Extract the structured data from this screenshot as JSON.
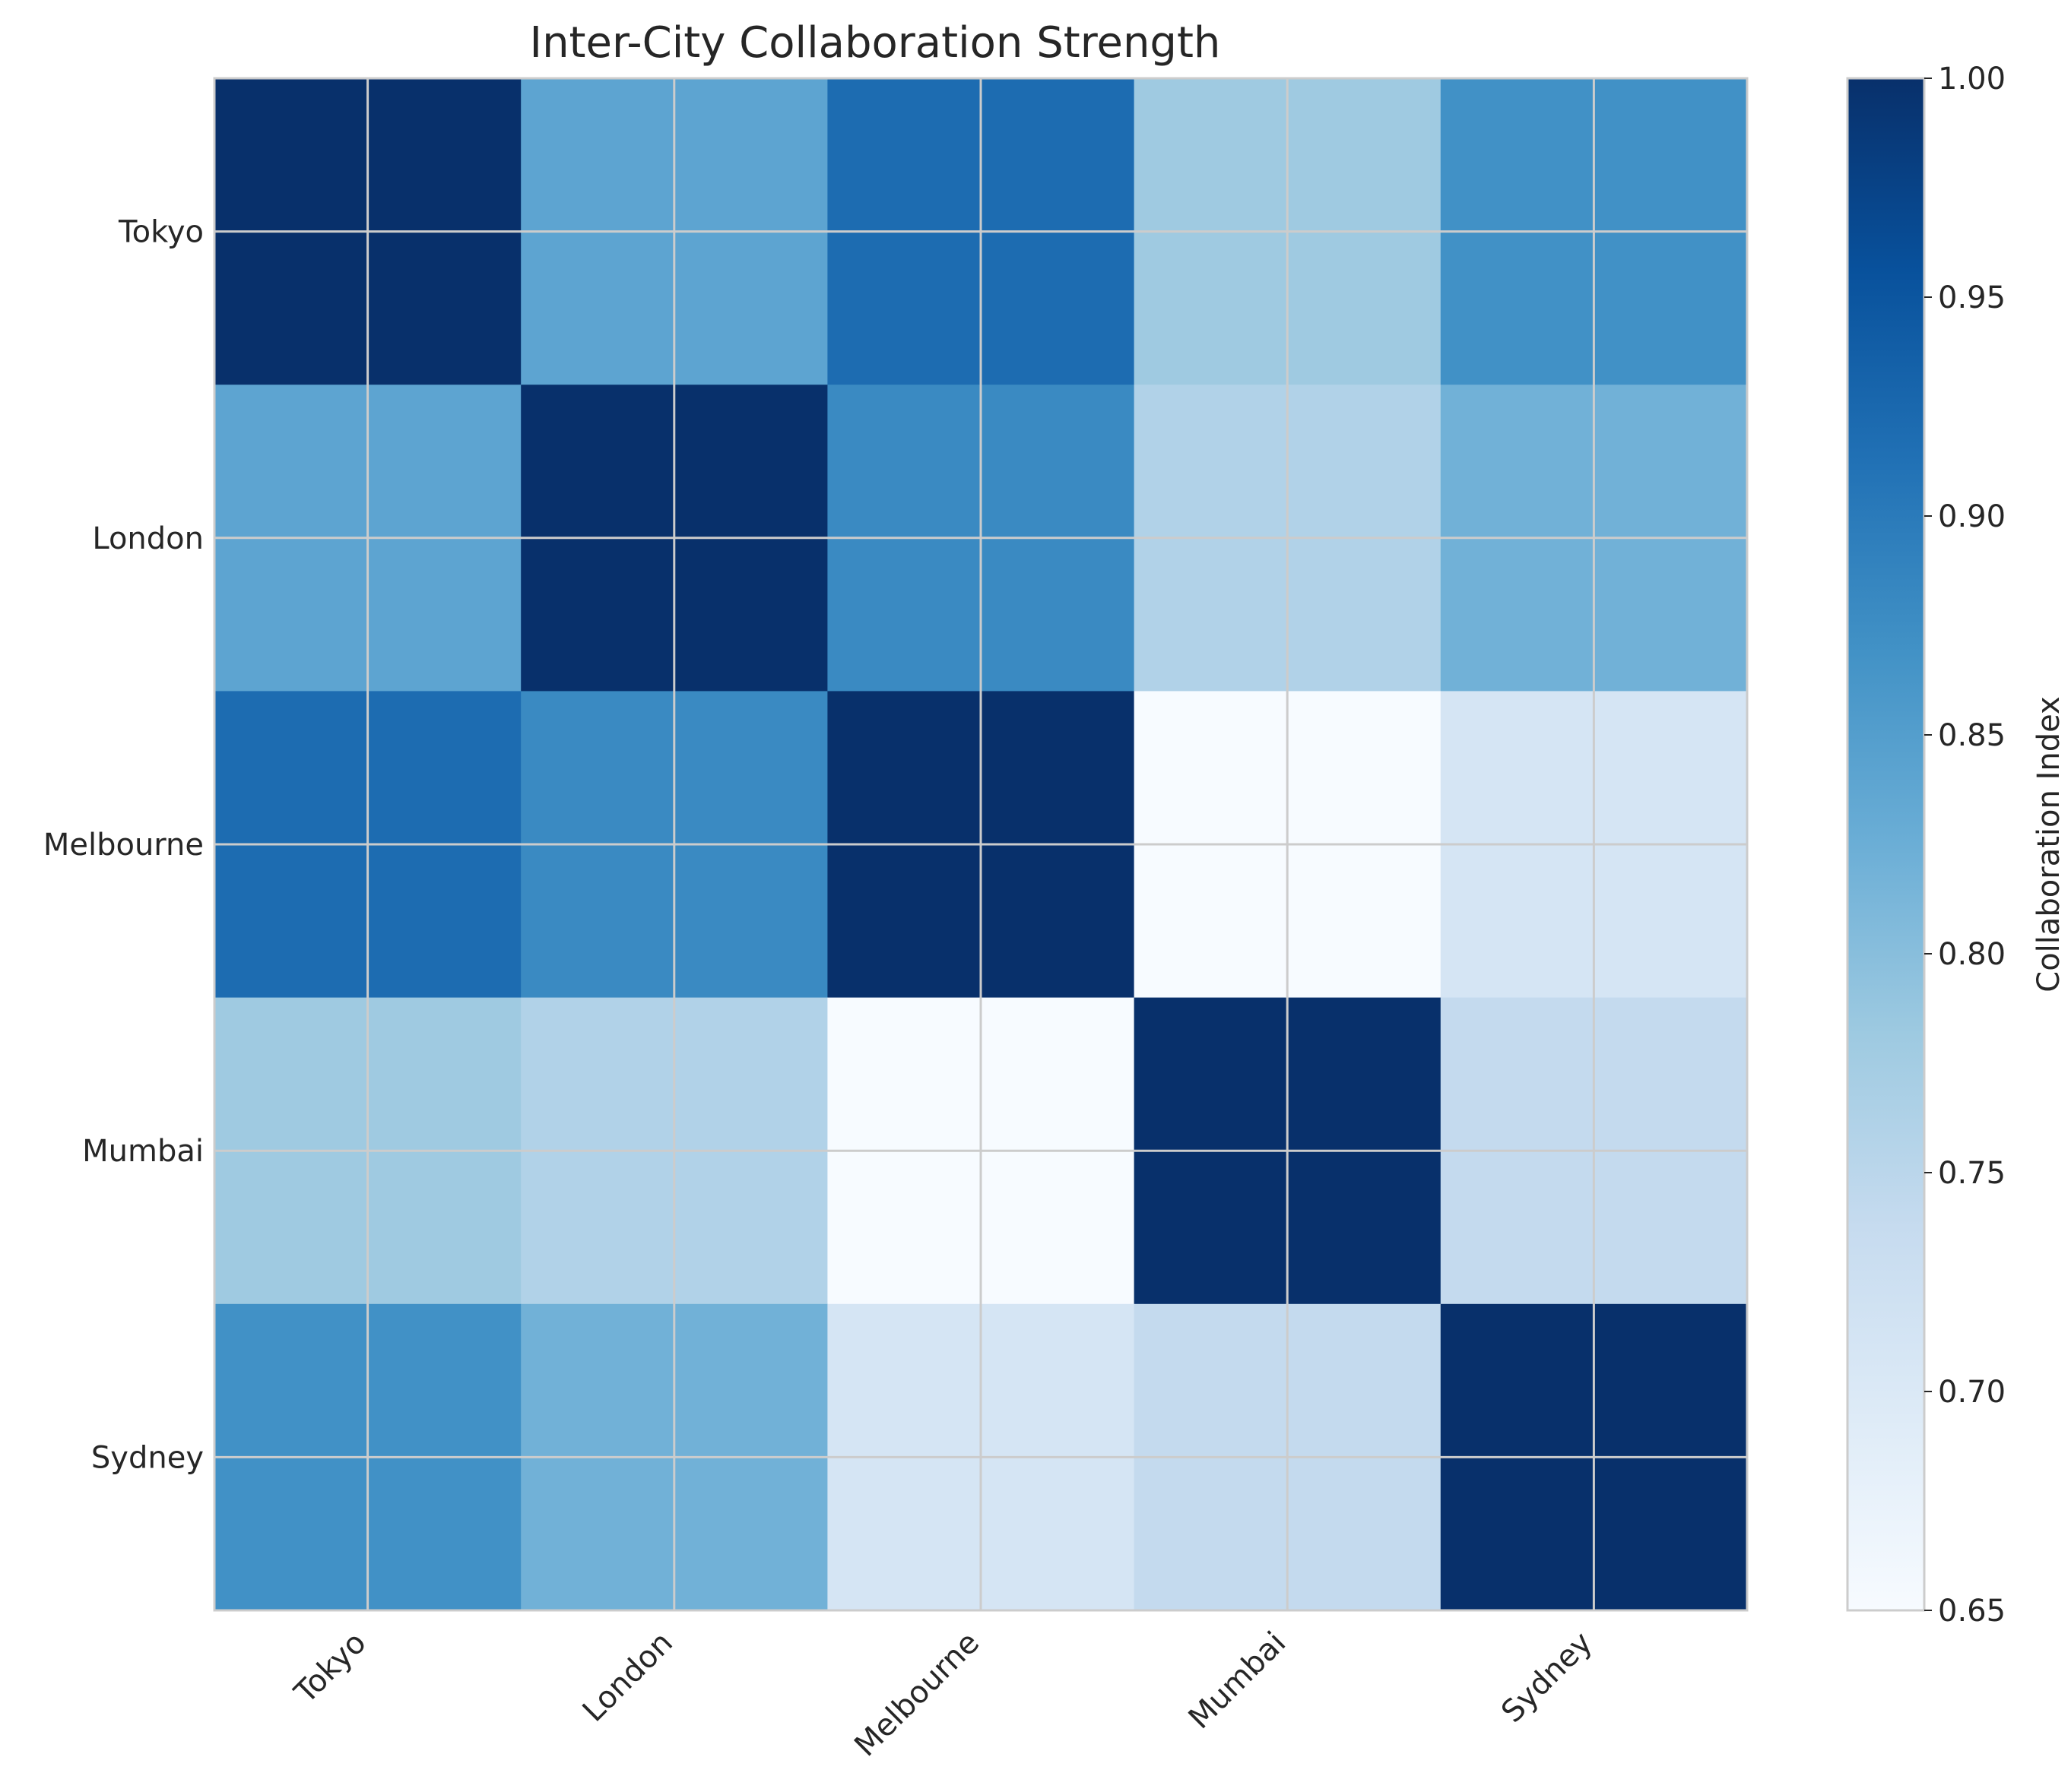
{
  "chart_data": {
    "type": "heatmap",
    "title": "Inter-City Collaboration Strength",
    "xlabel": "",
    "ylabel": "",
    "x_categories": [
      "Tokyo",
      "London",
      "Melbourne",
      "Mumbai",
      "Sydney"
    ],
    "y_categories": [
      "Tokyo",
      "London",
      "Melbourne",
      "Mumbai",
      "Sydney"
    ],
    "values": [
      [
        1.0,
        0.84,
        0.92,
        0.78,
        0.87
      ],
      [
        0.84,
        1.0,
        0.88,
        0.76,
        0.82
      ],
      [
        0.92,
        0.88,
        1.0,
        0.65,
        0.71
      ],
      [
        0.78,
        0.76,
        0.65,
        1.0,
        0.74
      ],
      [
        0.87,
        0.82,
        0.71,
        0.74,
        1.0
      ]
    ],
    "colorscale": "Blues",
    "vmin": 0.65,
    "vmax": 1.0,
    "colorbar": {
      "label": "Collaboration Index",
      "ticks": [
        "0.65",
        "0.70",
        "0.75",
        "0.80",
        "0.85",
        "0.90",
        "0.95",
        "1.00"
      ]
    },
    "grid": true
  }
}
